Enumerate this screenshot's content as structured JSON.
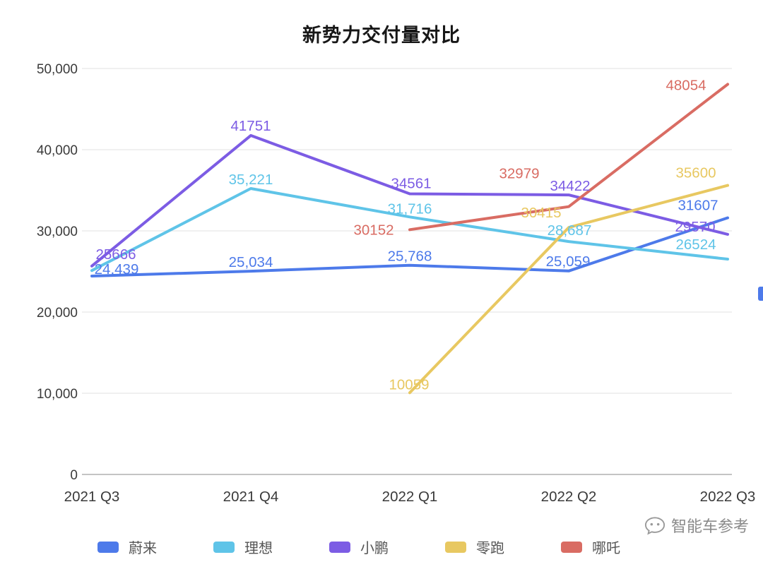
{
  "page": {
    "watermark_text": "智能车参考"
  },
  "chart_data": {
    "type": "line",
    "title": "新势力交付量对比",
    "xlabel": "",
    "ylabel": "",
    "categories": [
      "2021 Q3",
      "2021 Q4",
      "2022 Q1",
      "2022 Q2",
      "2022 Q3"
    ],
    "ylim": [
      0,
      50000
    ],
    "y_tick_labels": [
      "0",
      "10,000",
      "20,000",
      "30,000",
      "40,000",
      "50,000"
    ],
    "grid": true,
    "legend_position": "bottom",
    "series": [
      {
        "name": "蔚来",
        "color": "#4D7AEA",
        "values": [
          24439,
          25034,
          25768,
          25059,
          31607
        ],
        "labels": [
          "24,439",
          "25,034",
          "25,768",
          "25,059",
          "31607"
        ],
        "label_offsets": [
          [
            35,
            -3
          ],
          [
            0,
            -6
          ],
          [
            0,
            -6
          ],
          [
            -1,
            -7
          ],
          [
            -42,
            -11
          ]
        ]
      },
      {
        "name": "理想",
        "color": "#5FC4E8",
        "values": [
          25116,
          35221,
          31716,
          28687,
          26524
        ],
        "labels": [
          null,
          "35,221",
          "31,716",
          "28,687",
          "26524"
        ],
        "label_offsets": [
          null,
          [
            0,
            -6
          ],
          [
            0,
            -5
          ],
          [
            1,
            -9
          ],
          [
            -45,
            -14
          ]
        ]
      },
      {
        "name": "小鹏",
        "color": "#7C5CE4",
        "values": [
          25666,
          41751,
          34561,
          34422,
          29570
        ],
        "labels": [
          "25666",
          "41751",
          "34561",
          "34422",
          "29570"
        ],
        "label_offsets": [
          [
            34,
            -10
          ],
          [
            0,
            -7
          ],
          [
            2,
            -8
          ],
          [
            2,
            -6
          ],
          [
            -46,
            -4
          ]
        ]
      },
      {
        "name": "零跑",
        "color": "#E8C861",
        "values": [
          null,
          null,
          10059,
          30415,
          35600
        ],
        "labels": [
          null,
          null,
          "10059",
          "30415",
          "35600"
        ],
        "label_offsets": [
          null,
          null,
          [
            -1,
            -5
          ],
          [
            -39,
            -14
          ],
          [
            -45,
            -11
          ]
        ]
      },
      {
        "name": "哪吒",
        "color": "#D96C63",
        "values": [
          null,
          null,
          30152,
          32979,
          48054
        ],
        "labels": [
          null,
          null,
          "30152",
          "32979",
          "48054"
        ],
        "label_offsets": [
          null,
          null,
          [
            -51,
            7
          ],
          [
            -70,
            -40
          ],
          [
            -59,
            8
          ]
        ]
      }
    ]
  }
}
